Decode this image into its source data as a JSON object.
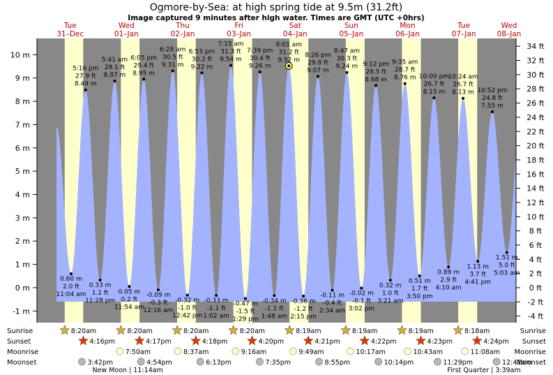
{
  "header": {
    "title": "Ogmore-by-Sea: at high  spring tide at 9.5m (31.2ft)",
    "subtitle": "Image captured 9 minutes after high water. Times are GMT (UTC +0hrs)"
  },
  "colors": {
    "night": "#888888",
    "day": "#ffffcc",
    "water": "#a4b3ff",
    "sun_star": "#d4b040",
    "sunset_star": "#d63a1a",
    "moonrise": "#ffffcc",
    "moonset": "#b8b8b8",
    "day_label": "#c00000"
  },
  "days": [
    {
      "name": "Tue",
      "date": "31–Dec"
    },
    {
      "name": "Wed",
      "date": "01–Jan"
    },
    {
      "name": "Thu",
      "date": "02–Jan"
    },
    {
      "name": "Fri",
      "date": "03–Jan"
    },
    {
      "name": "Sat",
      "date": "04–Jan"
    },
    {
      "name": "Sun",
      "date": "05–Jan"
    },
    {
      "name": "Mon",
      "date": "06–Jan"
    },
    {
      "name": "Tue",
      "date": "07–Jan"
    },
    {
      "name": "Wed",
      "date": "08–Jan"
    }
  ],
  "legend": {
    "sunrise": "Sunrise",
    "sunset": "Sunset",
    "moonrise": "Moonrise",
    "moonset": "Moonset"
  },
  "sunrise": [
    "8:20am",
    "8:20am",
    "8:20am",
    "8:20am",
    "8:19am",
    "8:19am",
    "8:19am",
    "8:18am"
  ],
  "sunset": [
    "4:16pm",
    "4:17pm",
    "4:18pm",
    "4:20pm",
    "4:21pm",
    "4:22pm",
    "4:23pm",
    "4:24pm"
  ],
  "moonrise": [
    "7:50am",
    "8:37am",
    "9:16am",
    "9:49am",
    "10:17am",
    "10:43am",
    "11:08am"
  ],
  "moonset": [
    "3:42pm",
    "4:54pm",
    "6:13pm",
    "7:35pm",
    "8:55pm",
    "10:14pm",
    "11:29pm",
    "12:41am"
  ],
  "moon_phases": [
    "New Moon | 11:14am",
    "First Quarter | 3:39am"
  ],
  "chart_data": {
    "type": "area",
    "title": "Ogmore-by-Sea: at high  spring tide at 9.5m (31.2ft)",
    "xlabel": "",
    "ylabel": "",
    "y_left_unit": "m",
    "y_right_unit": "ft",
    "ylim_m": [
      -1.5,
      10.7
    ],
    "y_ticks_m": [
      -1,
      0,
      1,
      2,
      3,
      4,
      5,
      6,
      7,
      8,
      9,
      10
    ],
    "y_ticks_ft": [
      -4,
      -2,
      0,
      2,
      4,
      6,
      8,
      10,
      12,
      14,
      16,
      18,
      20,
      22,
      24,
      26,
      28,
      30,
      32,
      34
    ],
    "x_start": "2024-12-30 20:30",
    "x_end": "2025-01-08 09:00",
    "current_tide": {
      "time": "2025-01-04 08:01",
      "height_m": 9.52
    },
    "extremes": [
      {
        "type": "low",
        "time": "2024-12-31 11:04",
        "t": "11:04 am",
        "m": 0.6,
        "ft": 2.0
      },
      {
        "type": "high",
        "time": "2024-12-31 17:16",
        "t": "5:16 pm",
        "m": 8.49,
        "ft": 27.9
      },
      {
        "type": "low",
        "time": "2024-12-31 23:28",
        "t": "11:28 pm",
        "m": 0.33,
        "ft": 1.1
      },
      {
        "type": "high",
        "time": "2025-01-01 05:41",
        "t": "5:41 am",
        "m": 8.87,
        "ft": 29.1
      },
      {
        "type": "low",
        "time": "2025-01-01 11:54",
        "t": "11:54 am",
        "m": 0.05,
        "ft": 0.2
      },
      {
        "type": "high",
        "time": "2025-01-01 18:05",
        "t": "6:05 pm",
        "m": 8.95,
        "ft": 29.4
      },
      {
        "type": "low",
        "time": "2025-01-02 00:16",
        "t": "12:16 am",
        "m": -0.09,
        "ft": -0.3
      },
      {
        "type": "high",
        "time": "2025-01-02 06:28",
        "t": "6:28 am",
        "m": 9.31,
        "ft": 30.5
      },
      {
        "type": "low",
        "time": "2025-01-02 12:42",
        "t": "12:42 pm",
        "m": -0.32,
        "ft": -1.0
      },
      {
        "type": "high",
        "time": "2025-01-02 18:53",
        "t": "6:53 pm",
        "m": 9.22,
        "ft": 30.2
      },
      {
        "type": "low",
        "time": "2025-01-03 01:02",
        "t": "1:02 am",
        "m": -0.33,
        "ft": -1.1
      },
      {
        "type": "high",
        "time": "2025-01-03 07:15",
        "t": "7:15 am",
        "m": 9.54,
        "ft": 31.3
      },
      {
        "type": "low",
        "time": "2025-01-03 13:29",
        "t": "1:29 pm",
        "m": -0.47,
        "ft": -1.5
      },
      {
        "type": "high",
        "time": "2025-01-03 19:39",
        "t": "7:39 pm",
        "m": 9.26,
        "ft": 30.4
      },
      {
        "type": "low",
        "time": "2025-01-04 01:48",
        "t": "1:48 am",
        "m": -0.34,
        "ft": -1.1
      },
      {
        "type": "high",
        "time": "2025-01-04 08:01",
        "t": "8:01 am",
        "m": 9.52,
        "ft": 31.2
      },
      {
        "type": "low",
        "time": "2025-01-04 14:15",
        "t": "2:15 pm",
        "m": -0.36,
        "ft": -1.2
      },
      {
        "type": "high",
        "time": "2025-01-04 20:26",
        "t": "8:26 pm",
        "m": 9.07,
        "ft": 29.8
      },
      {
        "type": "low",
        "time": "2025-01-05 02:34",
        "t": "2:34 am",
        "m": -0.11,
        "ft": -0.4
      },
      {
        "type": "high",
        "time": "2025-01-05 08:47",
        "t": "8:47 am",
        "m": 9.24,
        "ft": 30.3
      },
      {
        "type": "low",
        "time": "2025-01-05 15:02",
        "t": "3:02 pm",
        "m": -0.02,
        "ft": -0.1
      },
      {
        "type": "high",
        "time": "2025-01-05 21:12",
        "t": "9:12 pm",
        "m": 8.68,
        "ft": 28.5
      },
      {
        "type": "low",
        "time": "2025-01-06 03:21",
        "t": "3:21 am",
        "m": 0.32,
        "ft": 1.0
      },
      {
        "type": "high",
        "time": "2025-01-06 09:35",
        "t": "9:35 am",
        "m": 8.76,
        "ft": 28.7
      },
      {
        "type": "low",
        "time": "2025-01-06 15:50",
        "t": "3:50 pm",
        "m": 0.51,
        "ft": 1.7
      },
      {
        "type": "high",
        "time": "2025-01-06 22:00",
        "t": "10:00 pm",
        "m": 8.15,
        "ft": 26.7
      },
      {
        "type": "low",
        "time": "2025-01-07 04:10",
        "t": "4:10 am",
        "m": 0.89,
        "ft": 2.9
      },
      {
        "type": "high",
        "time": "2025-01-07 10:24",
        "t": "10:24 am",
        "m": 8.13,
        "ft": 26.7
      },
      {
        "type": "low",
        "time": "2025-01-07 16:41",
        "t": "4:41 pm",
        "m": 1.13,
        "ft": 3.7
      },
      {
        "type": "high",
        "time": "2025-01-07 22:52",
        "t": "10:52 pm",
        "m": 7.55,
        "ft": 24.8
      },
      {
        "type": "low",
        "time": "2025-01-08 05:03",
        "t": "5:03 am",
        "m": 1.51,
        "ft": 5.0
      }
    ]
  }
}
